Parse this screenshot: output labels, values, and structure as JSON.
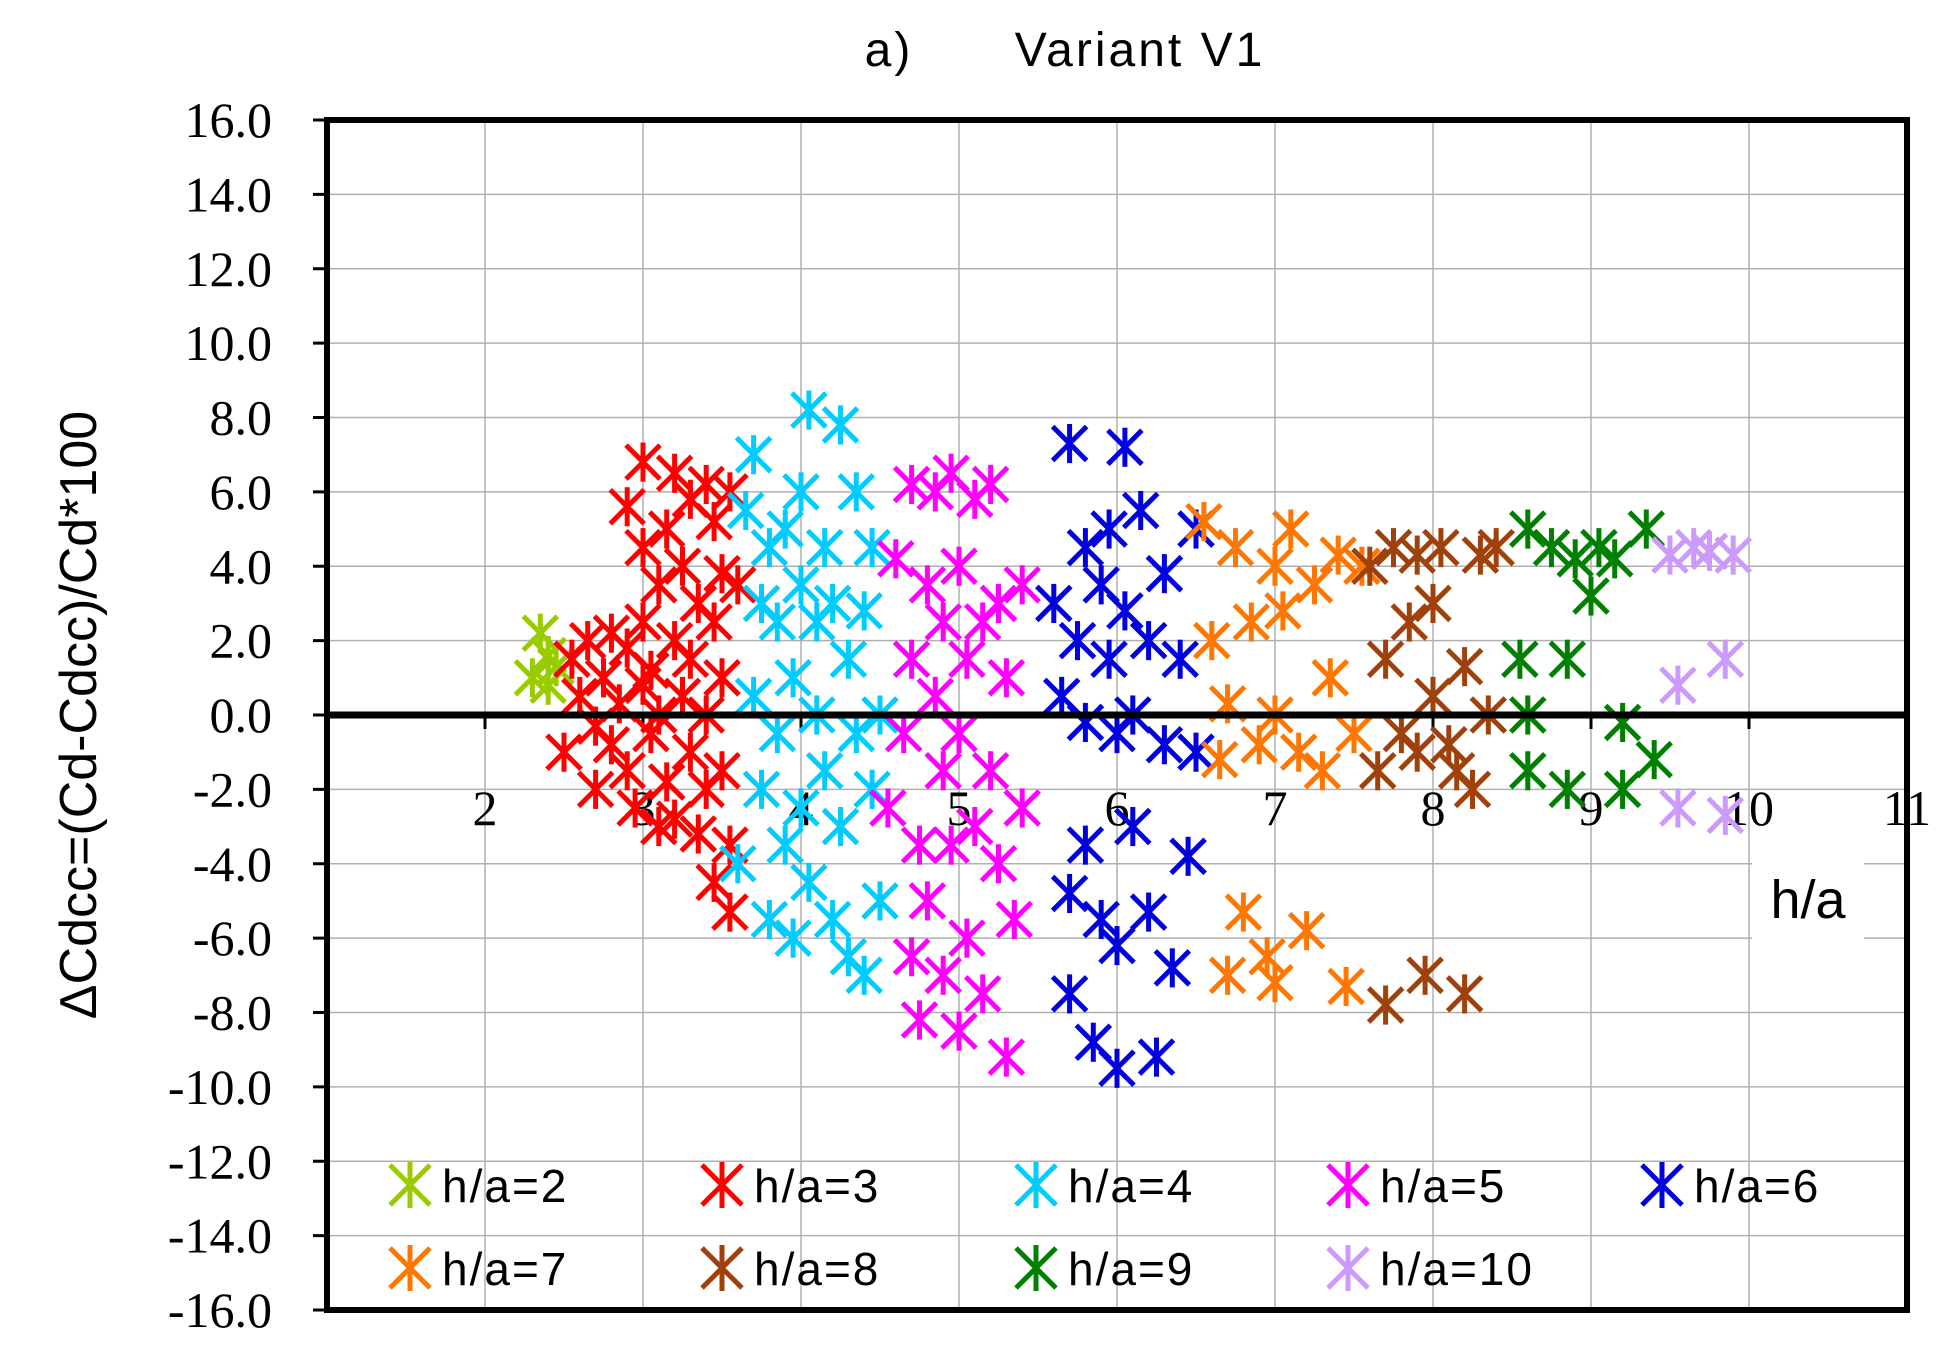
{
  "chart_data": {
    "type": "scatter",
    "title_prefix": "a)",
    "title": "Variant V1",
    "xlabel": "h/a",
    "ylabel": "ΔCdcc=(Cd-Cdcc)/Cd*100",
    "xlim": [
      1,
      11
    ],
    "ylim": [
      -16,
      16
    ],
    "x_ticks": [
      "2",
      "3",
      "4",
      "5",
      "6",
      "7",
      "8",
      "9",
      "10",
      "11"
    ],
    "y_ticks": [
      "16.0",
      "14.0",
      "12.0",
      "10.0",
      "8.0",
      "6.0",
      "4.0",
      "2.0",
      "0.0",
      "-2.0",
      "-4.0",
      "-6.0",
      "-8.0",
      "-10.0",
      "-12.0",
      "-14.0",
      "-16.0"
    ],
    "grid": true,
    "legend_position": "bottom-inside",
    "series": [
      {
        "name": "h/a=2",
        "color": "#99cc00",
        "points": [
          [
            2.3,
            1.0
          ],
          [
            2.35,
            2.2
          ],
          [
            2.4,
            1.6
          ],
          [
            2.45,
            1.3
          ],
          [
            2.4,
            0.8
          ]
        ]
      },
      {
        "name": "h/a=3",
        "color": "#ff0000",
        "points": [
          [
            2.5,
            -1.0
          ],
          [
            2.55,
            1.5
          ],
          [
            2.6,
            0.5
          ],
          [
            2.65,
            2.0
          ],
          [
            2.7,
            -0.3
          ],
          [
            2.7,
            -2.0
          ],
          [
            2.75,
            1.0
          ],
          [
            2.8,
            2.2
          ],
          [
            2.8,
            -0.8
          ],
          [
            2.85,
            0.3
          ],
          [
            2.9,
            1.8
          ],
          [
            2.9,
            -1.5
          ],
          [
            2.9,
            5.6
          ],
          [
            2.95,
            -2.5
          ],
          [
            3.0,
            0.8
          ],
          [
            3.0,
            2.5
          ],
          [
            3.0,
            4.5
          ],
          [
            3.0,
            6.8
          ],
          [
            3.05,
            -0.5
          ],
          [
            3.05,
            1.2
          ],
          [
            3.1,
            -3.0
          ],
          [
            3.1,
            3.5
          ],
          [
            3.1,
            0.0
          ],
          [
            3.15,
            5.0
          ],
          [
            3.15,
            -1.8
          ],
          [
            3.2,
            2.0
          ],
          [
            3.2,
            6.5
          ],
          [
            3.2,
            -2.8
          ],
          [
            3.25,
            0.5
          ],
          [
            3.25,
            4.0
          ],
          [
            3.3,
            -1.0
          ],
          [
            3.3,
            5.8
          ],
          [
            3.3,
            1.5
          ],
          [
            3.35,
            -3.2
          ],
          [
            3.35,
            3.0
          ],
          [
            3.4,
            0.0
          ],
          [
            3.4,
            6.2
          ],
          [
            3.4,
            -2.0
          ],
          [
            3.45,
            2.5
          ],
          [
            3.45,
            5.2
          ],
          [
            3.45,
            -4.5
          ],
          [
            3.5,
            -1.5
          ],
          [
            3.5,
            3.8
          ],
          [
            3.5,
            1.0
          ],
          [
            3.55,
            -3.5
          ],
          [
            3.55,
            6.0
          ],
          [
            3.55,
            -5.3
          ],
          [
            3.6,
            3.5
          ]
        ]
      },
      {
        "name": "h/a=4",
        "color": "#00ccff",
        "points": [
          [
            3.6,
            -4.0
          ],
          [
            3.65,
            5.5
          ],
          [
            3.7,
            7.0
          ],
          [
            3.7,
            0.5
          ],
          [
            3.75,
            -2.0
          ],
          [
            3.75,
            3.0
          ],
          [
            3.8,
            -5.5
          ],
          [
            3.8,
            4.5
          ],
          [
            3.85,
            -0.5
          ],
          [
            3.85,
            2.5
          ],
          [
            3.9,
            -3.5
          ],
          [
            3.9,
            5.0
          ],
          [
            3.95,
            -6.0
          ],
          [
            3.95,
            1.0
          ],
          [
            4.0,
            -2.5
          ],
          [
            4.0,
            3.5
          ],
          [
            4.0,
            6.0
          ],
          [
            4.05,
            8.2
          ],
          [
            4.05,
            -4.5
          ],
          [
            4.1,
            0.0
          ],
          [
            4.1,
            2.5
          ],
          [
            4.15,
            -1.5
          ],
          [
            4.15,
            4.5
          ],
          [
            4.2,
            -5.5
          ],
          [
            4.2,
            3.0
          ],
          [
            4.25,
            7.8
          ],
          [
            4.25,
            -3.0
          ],
          [
            4.3,
            1.5
          ],
          [
            4.3,
            -6.5
          ],
          [
            4.35,
            6.0
          ],
          [
            4.35,
            -0.5
          ],
          [
            4.4,
            2.8
          ],
          [
            4.4,
            -7.0
          ],
          [
            4.45,
            4.5
          ],
          [
            4.45,
            -2.0
          ],
          [
            4.5,
            0.0
          ],
          [
            4.5,
            -5.0
          ]
        ]
      },
      {
        "name": "h/a=5",
        "color": "#ff00ff",
        "points": [
          [
            4.55,
            -2.5
          ],
          [
            4.6,
            4.2
          ],
          [
            4.65,
            -0.5
          ],
          [
            4.7,
            6.2
          ],
          [
            4.7,
            -6.5
          ],
          [
            4.7,
            1.5
          ],
          [
            4.75,
            -3.5
          ],
          [
            4.75,
            -8.2
          ],
          [
            4.8,
            3.5
          ],
          [
            4.8,
            -5.0
          ],
          [
            4.85,
            0.5
          ],
          [
            4.85,
            6.0
          ],
          [
            4.9,
            -1.5
          ],
          [
            4.9,
            2.5
          ],
          [
            4.9,
            -7.0
          ],
          [
            4.95,
            6.5
          ],
          [
            4.95,
            -3.5
          ],
          [
            5.0,
            4.0
          ],
          [
            5.0,
            -8.5
          ],
          [
            5.0,
            -0.5
          ],
          [
            5.05,
            1.5
          ],
          [
            5.05,
            -6.0
          ],
          [
            5.1,
            5.8
          ],
          [
            5.1,
            -3.0
          ],
          [
            5.15,
            2.5
          ],
          [
            5.15,
            -7.5
          ],
          [
            5.2,
            -1.5
          ],
          [
            5.2,
            6.2
          ],
          [
            5.25,
            3.0
          ],
          [
            5.25,
            -4.0
          ],
          [
            5.3,
            -9.2
          ],
          [
            5.3,
            1.0
          ],
          [
            5.35,
            -5.5
          ],
          [
            5.4,
            3.5
          ],
          [
            5.4,
            -2.5
          ]
        ]
      },
      {
        "name": "h/a=6",
        "color": "#0000e0",
        "points": [
          [
            5.6,
            3.0
          ],
          [
            5.65,
            0.5
          ],
          [
            5.7,
            7.3
          ],
          [
            5.7,
            -4.8
          ],
          [
            5.7,
            -7.5
          ],
          [
            5.75,
            2.0
          ],
          [
            5.8,
            4.5
          ],
          [
            5.8,
            -0.2
          ],
          [
            5.8,
            -3.5
          ],
          [
            5.85,
            -8.8
          ],
          [
            5.9,
            3.5
          ],
          [
            5.9,
            -5.5
          ],
          [
            5.95,
            5.0
          ],
          [
            5.95,
            1.5
          ],
          [
            6.0,
            -0.5
          ],
          [
            6.0,
            -9.5
          ],
          [
            6.0,
            -6.2
          ],
          [
            6.05,
            7.2
          ],
          [
            6.05,
            2.8
          ],
          [
            6.1,
            -3.0
          ],
          [
            6.1,
            0.0
          ],
          [
            6.15,
            5.5
          ],
          [
            6.2,
            -5.3
          ],
          [
            6.2,
            2.0
          ],
          [
            6.25,
            -9.2
          ],
          [
            6.3,
            3.8
          ],
          [
            6.3,
            -0.8
          ],
          [
            6.35,
            -6.8
          ],
          [
            6.4,
            1.5
          ],
          [
            6.45,
            -3.8
          ],
          [
            6.5,
            5.0
          ],
          [
            6.5,
            -1.0
          ]
        ]
      },
      {
        "name": "h/a=7",
        "color": "#ff7700",
        "points": [
          [
            6.55,
            5.2
          ],
          [
            6.6,
            2.0
          ],
          [
            6.65,
            -1.2
          ],
          [
            6.7,
            -7.0
          ],
          [
            6.7,
            0.3
          ],
          [
            6.75,
            4.5
          ],
          [
            6.8,
            -5.3
          ],
          [
            6.85,
            2.5
          ],
          [
            6.9,
            -0.8
          ],
          [
            6.95,
            -6.5
          ],
          [
            7.0,
            4.0
          ],
          [
            7.0,
            0.0
          ],
          [
            7.0,
            -7.2
          ],
          [
            7.05,
            2.8
          ],
          [
            7.1,
            5.0
          ],
          [
            7.15,
            -1.0
          ],
          [
            7.2,
            -5.8
          ],
          [
            7.25,
            3.5
          ],
          [
            7.3,
            -1.5
          ],
          [
            7.35,
            1.0
          ],
          [
            7.4,
            4.3
          ],
          [
            7.45,
            -7.3
          ],
          [
            7.5,
            -0.5
          ],
          [
            7.55,
            4.0
          ]
        ]
      },
      {
        "name": "h/a=8",
        "color": "#a0400a",
        "points": [
          [
            7.6,
            4.0
          ],
          [
            7.65,
            -1.5
          ],
          [
            7.7,
            1.5
          ],
          [
            7.7,
            -7.8
          ],
          [
            7.75,
            4.5
          ],
          [
            7.8,
            -0.5
          ],
          [
            7.85,
            2.5
          ],
          [
            7.9,
            4.3
          ],
          [
            7.9,
            -1.0
          ],
          [
            7.95,
            -7.0
          ],
          [
            8.0,
            0.5
          ],
          [
            8.0,
            3.0
          ],
          [
            8.05,
            4.5
          ],
          [
            8.1,
            -0.8
          ],
          [
            8.15,
            -1.5
          ],
          [
            8.2,
            1.3
          ],
          [
            8.2,
            -7.5
          ],
          [
            8.25,
            -2.0
          ],
          [
            8.3,
            4.3
          ],
          [
            8.35,
            0.0
          ],
          [
            8.4,
            4.5
          ]
        ]
      },
      {
        "name": "h/a=9",
        "color": "#008000",
        "points": [
          [
            8.55,
            1.5
          ],
          [
            8.6,
            5.0
          ],
          [
            8.6,
            0.0
          ],
          [
            8.6,
            -1.5
          ],
          [
            8.75,
            4.5
          ],
          [
            8.85,
            1.5
          ],
          [
            8.85,
            -2.0
          ],
          [
            8.9,
            4.2
          ],
          [
            9.0,
            3.2
          ],
          [
            9.05,
            4.5
          ],
          [
            9.15,
            4.2
          ],
          [
            9.2,
            -0.2
          ],
          [
            9.2,
            -2.0
          ],
          [
            9.35,
            5.0
          ],
          [
            9.4,
            -1.2
          ]
        ]
      },
      {
        "name": "h/a=10",
        "color": "#cc99ff",
        "points": [
          [
            9.5,
            4.3
          ],
          [
            9.55,
            -2.5
          ],
          [
            9.55,
            0.8
          ],
          [
            9.65,
            4.5
          ],
          [
            9.75,
            4.4
          ],
          [
            9.85,
            -2.7
          ],
          [
            9.85,
            1.5
          ],
          [
            9.9,
            4.3
          ]
        ]
      }
    ]
  }
}
